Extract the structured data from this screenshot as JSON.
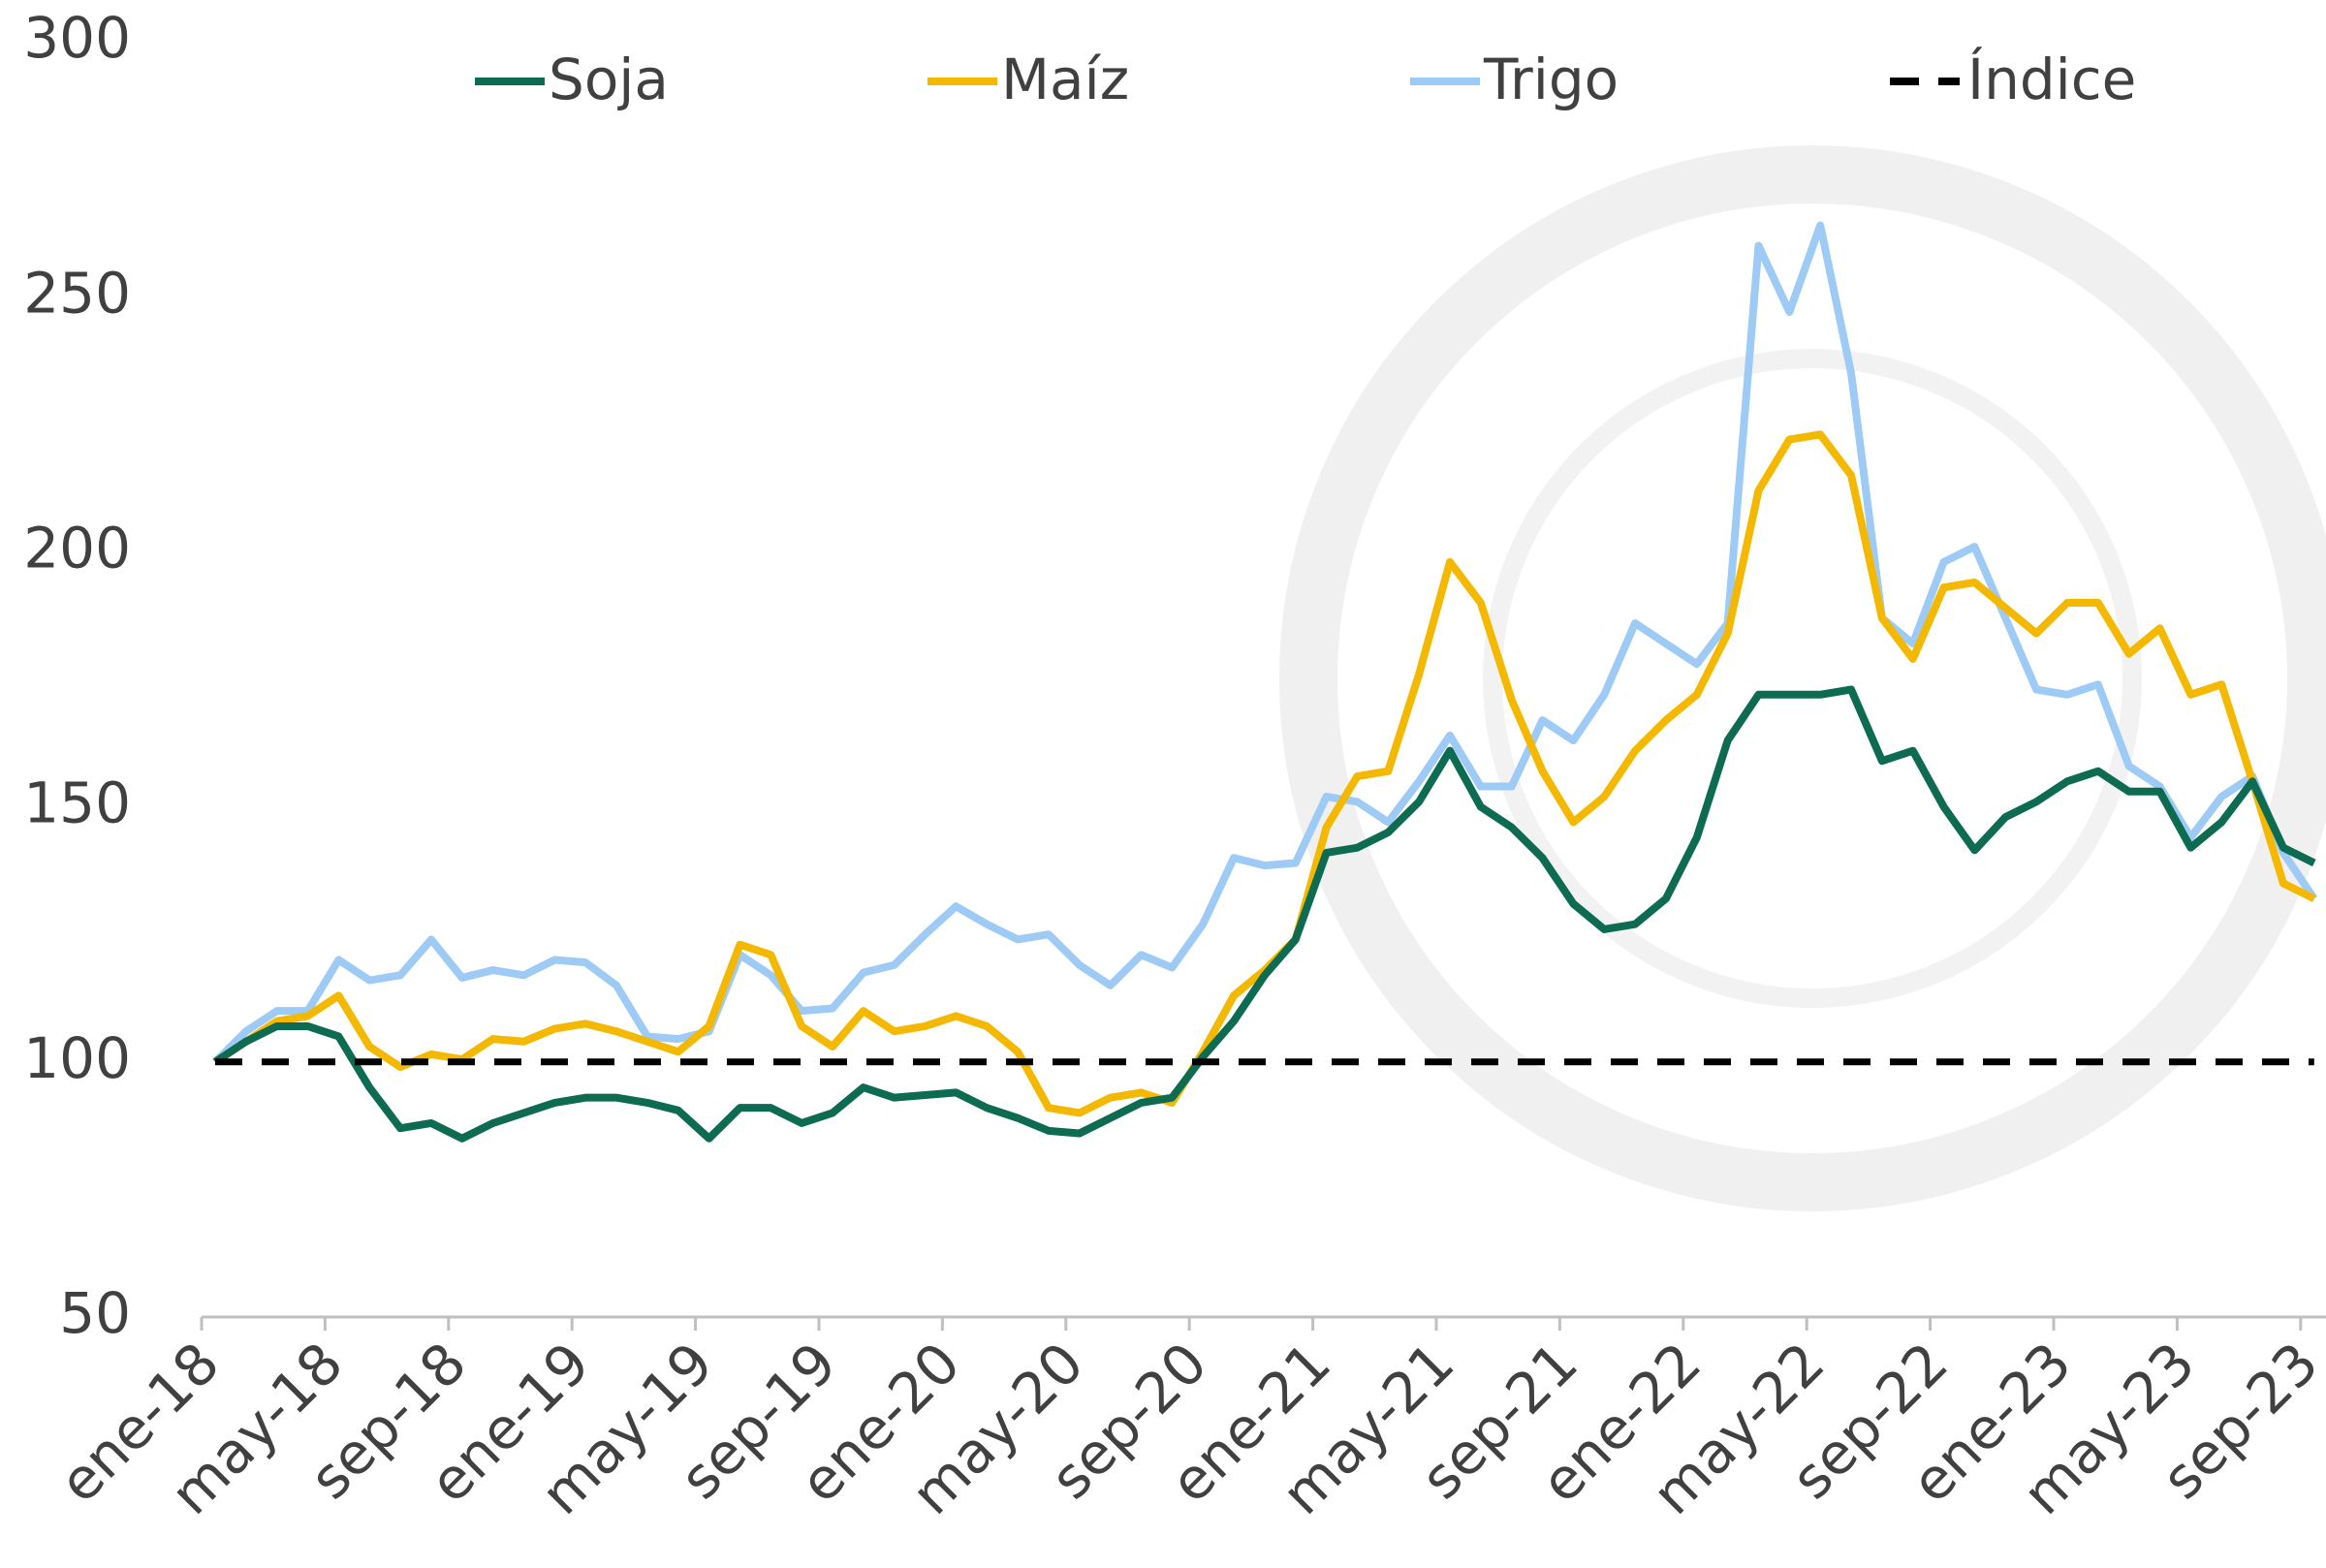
{
  "chart_data": {
    "type": "line",
    "categories": [
      "ene-18",
      null,
      null,
      null,
      "may-18",
      null,
      null,
      null,
      "sep-18",
      null,
      null,
      null,
      "ene-19",
      null,
      null,
      null,
      "may-19",
      null,
      null,
      null,
      "sep-19",
      null,
      null,
      null,
      "ene-20",
      null,
      null,
      null,
      "may-20",
      null,
      null,
      null,
      "sep-20",
      null,
      null,
      null,
      "ene-21",
      null,
      null,
      null,
      "may-21",
      null,
      null,
      null,
      "sep-21",
      null,
      null,
      null,
      "ene-22",
      null,
      null,
      null,
      "may-22",
      null,
      null,
      null,
      "sep-22",
      null,
      null,
      null,
      "ene-23",
      null,
      null,
      null,
      "may-23",
      null,
      null,
      null,
      "sep-23"
    ],
    "series": [
      {
        "name": "Soja",
        "color": "#0d6b52",
        "values": [
          100,
          104,
          107,
          107,
          105,
          95,
          87,
          88,
          85,
          88,
          90,
          92,
          93,
          93,
          92,
          90.5,
          85,
          91,
          91,
          88,
          90,
          95,
          93,
          93.5,
          94,
          91,
          89,
          86.5,
          86,
          89,
          92,
          93,
          101,
          108,
          117,
          124,
          141,
          142,
          145,
          151,
          161,
          150,
          146,
          140,
          131,
          126,
          127,
          132,
          144,
          163,
          172,
          172,
          172,
          173,
          159,
          161,
          150,
          141.5,
          148,
          151,
          155,
          157,
          153,
          153,
          142,
          147,
          155,
          142,
          139
        ]
      },
      {
        "name": "Maíz",
        "color": "#f5b800",
        "values": [
          100,
          104,
          108,
          109,
          113,
          103,
          99,
          101.5,
          100.5,
          104.5,
          104,
          106.5,
          107.5,
          106,
          104,
          102,
          107,
          123,
          121,
          107,
          103,
          110,
          106,
          107,
          109,
          107,
          102,
          91,
          90,
          93,
          94,
          92,
          102,
          113,
          118,
          124,
          146,
          156,
          157,
          176,
          198,
          190,
          171,
          157,
          147,
          152,
          161,
          167,
          172,
          184,
          212,
          222,
          223,
          215,
          187,
          179,
          193,
          194,
          189,
          184,
          190,
          190,
          180,
          185,
          172,
          174,
          155,
          135,
          132
        ]
      },
      {
        "name": "Trigo",
        "color": "#9dcbf5",
        "values": [
          100,
          106,
          110,
          110,
          120,
          116,
          117,
          124,
          116.5,
          118,
          117,
          120,
          119.5,
          115,
          105,
          104.5,
          106,
          121,
          117,
          110,
          110.5,
          117.5,
          119,
          125,
          130.5,
          127,
          124,
          125,
          119,
          115,
          121,
          118.5,
          127,
          140,
          138.5,
          139,
          152,
          151,
          147,
          155,
          164,
          154,
          154,
          167,
          163,
          172,
          186,
          182,
          178,
          186,
          260,
          247,
          264,
          235,
          187,
          182,
          198,
          201,
          187,
          173,
          172,
          174,
          158,
          154,
          144,
          152,
          156,
          141,
          132
        ]
      },
      {
        "name": "Índice",
        "color": "#000000",
        "dashed": true,
        "values": [
          100,
          100,
          100,
          100,
          100,
          100,
          100,
          100,
          100,
          100,
          100,
          100,
          100,
          100,
          100,
          100,
          100,
          100,
          100,
          100,
          100,
          100,
          100,
          100,
          100,
          100,
          100,
          100,
          100,
          100,
          100,
          100,
          100,
          100,
          100,
          100,
          100,
          100,
          100,
          100,
          100,
          100,
          100,
          100,
          100,
          100,
          100,
          100,
          100,
          100,
          100,
          100,
          100,
          100,
          100,
          100,
          100,
          100,
          100,
          100,
          100,
          100,
          100,
          100,
          100,
          100,
          100,
          100,
          100
        ]
      }
    ],
    "ylim": [
      50,
      300
    ],
    "yticks": [
      50,
      100,
      150,
      200,
      250,
      300
    ],
    "grid": false,
    "legend": "top"
  }
}
